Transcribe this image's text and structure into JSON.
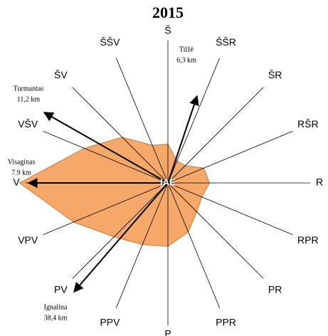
{
  "chart_data": {
    "type": "radar",
    "title": "2015",
    "categories": [
      "Š",
      "ŠŠR",
      "ŠR",
      "RŠR",
      "R",
      "RPR",
      "PR",
      "PPR",
      "P",
      "PPV",
      "PV",
      "VPV",
      "V",
      "VŠV",
      "ŠV",
      "ŠŠV"
    ],
    "values": [
      57,
      35,
      36,
      57,
      61,
      54,
      60,
      78,
      93,
      98,
      112,
      150,
      218,
      133,
      95,
      60
    ],
    "color": "#f5a86a",
    "rlim": [
      0,
      230
    ],
    "center_label": "ĮAE",
    "annotations": [
      {
        "name": "Tilžė",
        "distance": "6,3 km"
      },
      {
        "name": "Turmantas",
        "distance": "11,2 km"
      },
      {
        "name": "Visaginas",
        "distance": "7.9 km"
      },
      {
        "name": "Ignalina",
        "distance": "38,4 km"
      }
    ]
  }
}
